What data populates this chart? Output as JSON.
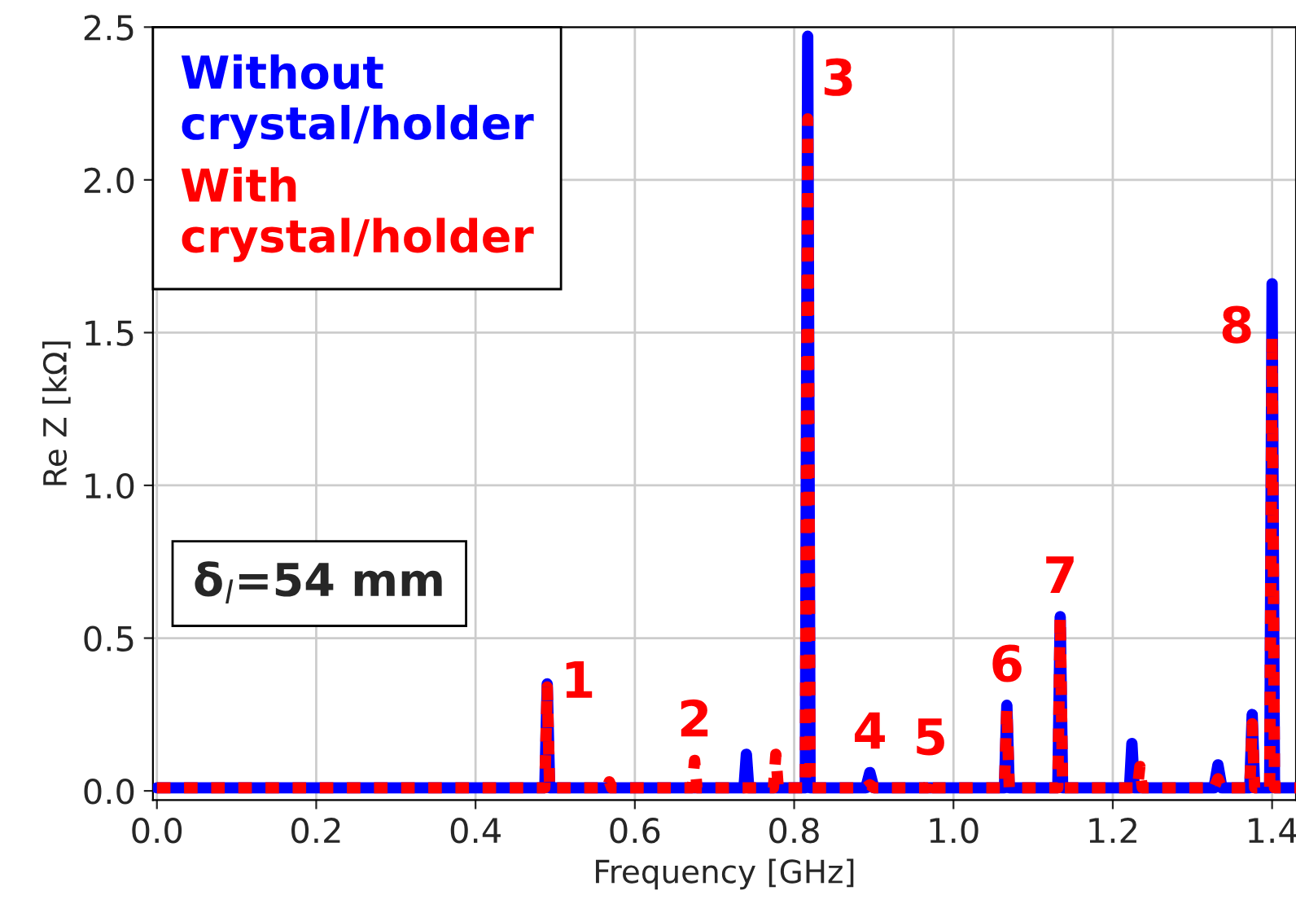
{
  "chart_data": {
    "type": "line",
    "xlabel": "Frequency [GHz]",
    "ylabel": "Re Z [kΩ]",
    "x": [
      0.0,
      0.487,
      0.49,
      0.493,
      0.565,
      0.568,
      0.571,
      0.672,
      0.675,
      0.678,
      0.737,
      0.74,
      0.743,
      0.774,
      0.777,
      0.78,
      0.814,
      0.817,
      0.82,
      0.89,
      0.895,
      0.9,
      0.968,
      0.971,
      0.974,
      1.064,
      1.067,
      1.07,
      1.131,
      1.134,
      1.137,
      1.221,
      1.224,
      1.227,
      1.231,
      1.234,
      1.237,
      1.327,
      1.332,
      1.337,
      1.372,
      1.375,
      1.378,
      1.397,
      1.4,
      1.403,
      1.43
    ],
    "series": [
      {
        "name": "Without crystal/holder",
        "color": "#0000ff",
        "line_style": "solid",
        "values": [
          0.01,
          0.01,
          0.35,
          0.01,
          0.01,
          0.01,
          0.01,
          0.01,
          0.01,
          0.01,
          0.01,
          0.12,
          0.01,
          0.01,
          0.01,
          0.01,
          0.01,
          2.47,
          0.01,
          0.01,
          0.06,
          0.01,
          0.01,
          0.01,
          0.01,
          0.01,
          0.28,
          0.01,
          0.01,
          0.57,
          0.01,
          0.01,
          0.155,
          0.01,
          0.01,
          0.01,
          0.01,
          0.01,
          0.085,
          0.01,
          0.01,
          0.25,
          0.01,
          0.01,
          1.66,
          0.01,
          0.01
        ]
      },
      {
        "name": "With crystal/holder",
        "color": "#ff0000",
        "line_style": "dashed",
        "values": [
          0.01,
          0.01,
          0.34,
          0.01,
          0.01,
          0.03,
          0.01,
          0.01,
          0.1,
          0.01,
          0.01,
          0.01,
          0.01,
          0.01,
          0.12,
          0.01,
          0.01,
          2.2,
          0.01,
          0.01,
          0.02,
          0.01,
          0.01,
          0.04,
          0.01,
          0.01,
          0.27,
          0.01,
          0.01,
          0.57,
          0.01,
          0.01,
          0.01,
          0.01,
          0.01,
          0.08,
          0.01,
          0.01,
          0.04,
          0.01,
          0.01,
          0.22,
          0.01,
          0.01,
          1.49,
          0.01,
          0.01
        ]
      }
    ],
    "xlim": [
      -0.005,
      1.43
    ],
    "ylim": [
      -0.03,
      2.5
    ],
    "xticks": [
      {
        "value": 0,
        "label": "0.0"
      },
      0.2,
      0.4,
      0.6,
      0.8,
      {
        "value": 1,
        "label": "1.0"
      },
      1.2,
      1.4
    ],
    "yticks": [
      {
        "value": 0,
        "label": "0.0"
      },
      0.5,
      {
        "value": 1,
        "label": "1.0"
      },
      1.5,
      {
        "value": 2,
        "label": "2.0"
      },
      2.5
    ],
    "grid": true,
    "legend": "top left",
    "marker": "none",
    "annotations": [
      {
        "text": "1",
        "x": 0.49,
        "y": 0.35
      },
      {
        "text": "2",
        "x": 0.675,
        "y": 0.1
      },
      {
        "text": "3",
        "x": 0.817,
        "y": 2.47
      },
      {
        "text": "4",
        "x": 0.895,
        "y": 0.06
      },
      {
        "text": "5",
        "x": 0.971,
        "y": 0.04
      },
      {
        "text": "6",
        "x": 1.067,
        "y": 0.28
      },
      {
        "text": "7",
        "x": 1.134,
        "y": 0.57
      },
      {
        "text": "8",
        "x": 1.4,
        "y": 1.66
      },
      "δ$_{l}$=54 mm"
    ]
  }
}
